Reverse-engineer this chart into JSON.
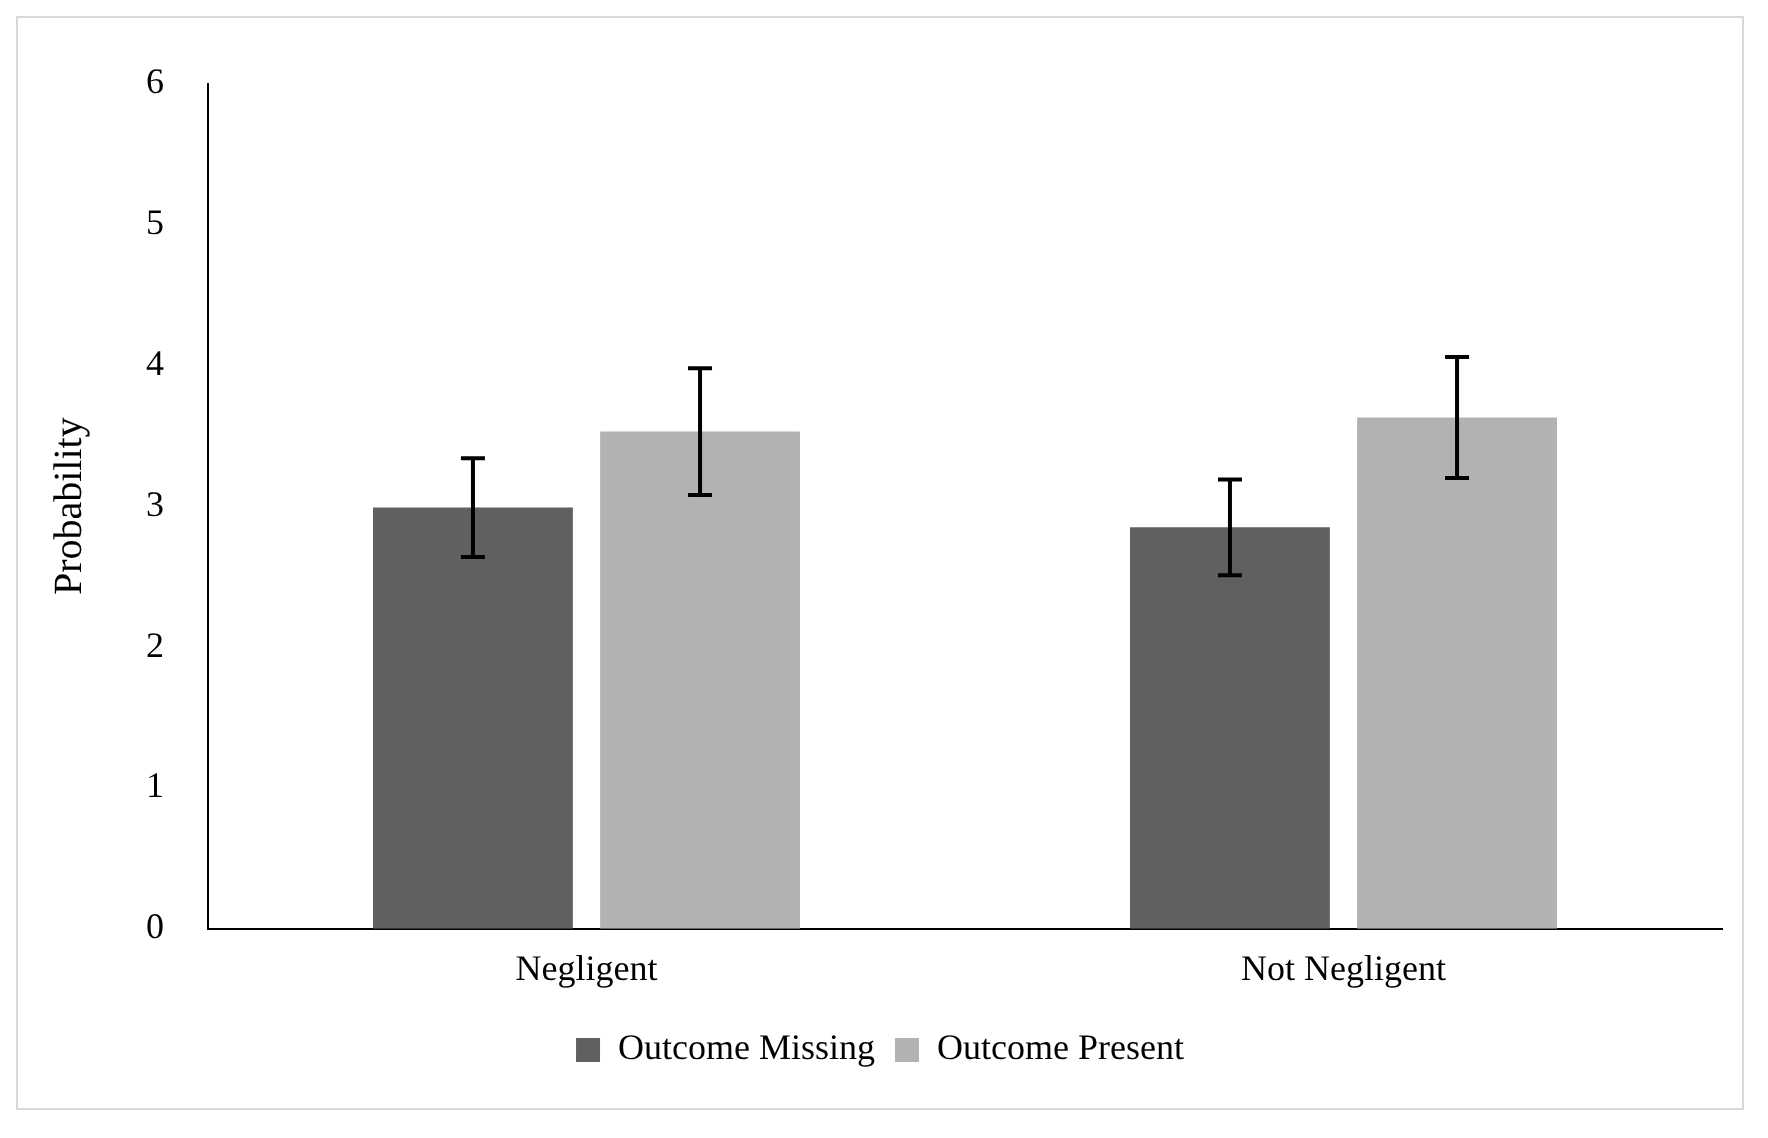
{
  "chart_data": {
    "type": "bar",
    "ylabel": "Probability",
    "categories": [
      "Negligent",
      "Not Negligent"
    ],
    "series": [
      {
        "name": "Outcome Missing",
        "color": "#606060",
        "values": [
          2.99,
          2.85
        ],
        "errors": [
          0.35,
          0.34
        ]
      },
      {
        "name": "Outcome Present",
        "color": "#b2b2b2",
        "values": [
          3.53,
          3.63
        ],
        "errors": [
          0.45,
          0.43
        ]
      }
    ],
    "ylim": [
      0,
      6
    ],
    "yticks": [
      0,
      1,
      2,
      3,
      4,
      5,
      6
    ],
    "grid": false,
    "legend": "bottom"
  }
}
